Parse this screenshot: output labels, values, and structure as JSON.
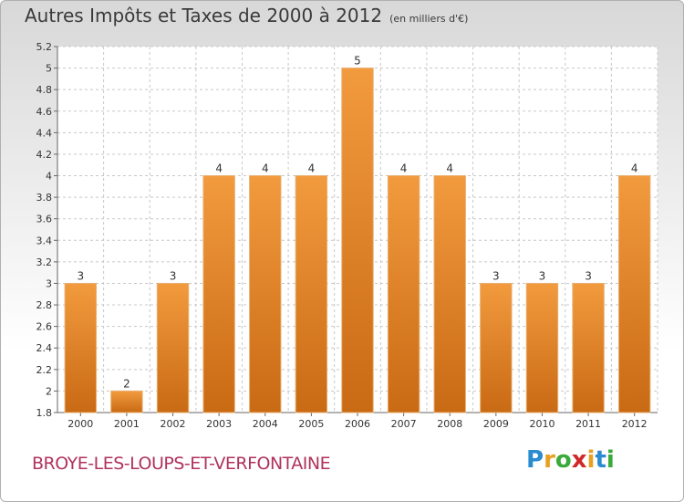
{
  "title": "Autres Impôts et Taxes de 2000 à 2012",
  "subtitle": "(en milliers d'€)",
  "commune": "BROYE-LES-LOUPS-ET-VERFONTAINE",
  "logo": {
    "letters": [
      "P",
      "r",
      "o",
      "x",
      "i",
      "t",
      "i"
    ],
    "colors": [
      "#2a8bd0",
      "#e8a020",
      "#3aaa3a",
      "#d02828",
      "#e8a020",
      "#2a8bd0",
      "#3aaa3a"
    ]
  },
  "colors": {
    "bar": "#f29a3e",
    "bar_dark": "#c96a14",
    "grid": "#c8c8c8"
  },
  "chart_data": {
    "type": "bar",
    "categories": [
      "2000",
      "2001",
      "2002",
      "2003",
      "2004",
      "2005",
      "2006",
      "2007",
      "2008",
      "2009",
      "2010",
      "2011",
      "2012"
    ],
    "values": [
      3,
      2,
      3,
      4,
      4,
      4,
      5,
      4,
      4,
      3,
      3,
      3,
      4
    ],
    "value_labels": [
      "3",
      "2",
      "3",
      "4",
      "4",
      "4",
      "5",
      "4",
      "4",
      "3",
      "3",
      "3",
      "4"
    ],
    "ylim": [
      1.8,
      5.2
    ],
    "yticks": [
      "1.8",
      "2",
      "2.2",
      "2.4",
      "2.6",
      "2.8",
      "3",
      "3.2",
      "3.4",
      "3.6",
      "3.8",
      "4",
      "4.2",
      "4.4",
      "4.6",
      "4.8",
      "5",
      "5.2"
    ],
    "grid": true,
    "legend": "none"
  }
}
